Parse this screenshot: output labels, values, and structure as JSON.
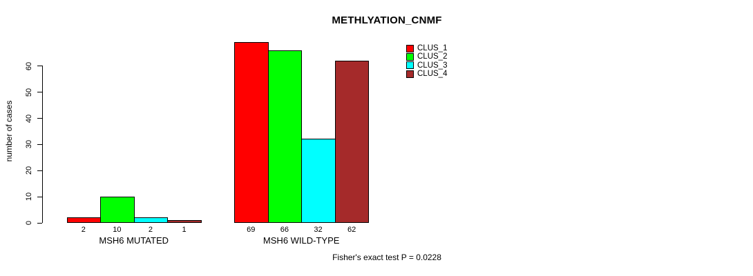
{
  "chart_data": {
    "type": "bar",
    "title": "METHLYATION_CNMF",
    "ylabel": "number of cases",
    "footnote": "Fisher's exact test P = 0.0228",
    "ylim": [
      0,
      60
    ],
    "yticks": [
      0,
      10,
      20,
      30,
      40,
      50,
      60
    ],
    "grid": false,
    "legend_position": "top-right",
    "bar_value_labels_shown": true,
    "categories": [
      "MSH6 MUTATED",
      "MSH6 WILD-TYPE"
    ],
    "series": [
      {
        "name": "CLUS_1",
        "color": "#FF0000",
        "values": [
          2,
          69
        ]
      },
      {
        "name": "CLUS_2",
        "color": "#00FF00",
        "values": [
          10,
          66
        ]
      },
      {
        "name": "CLUS_3",
        "color": "#00FFFF",
        "values": [
          2,
          32
        ]
      },
      {
        "name": "CLUS_4",
        "color": "#A52A2A",
        "values": [
          1,
          62
        ]
      }
    ]
  }
}
